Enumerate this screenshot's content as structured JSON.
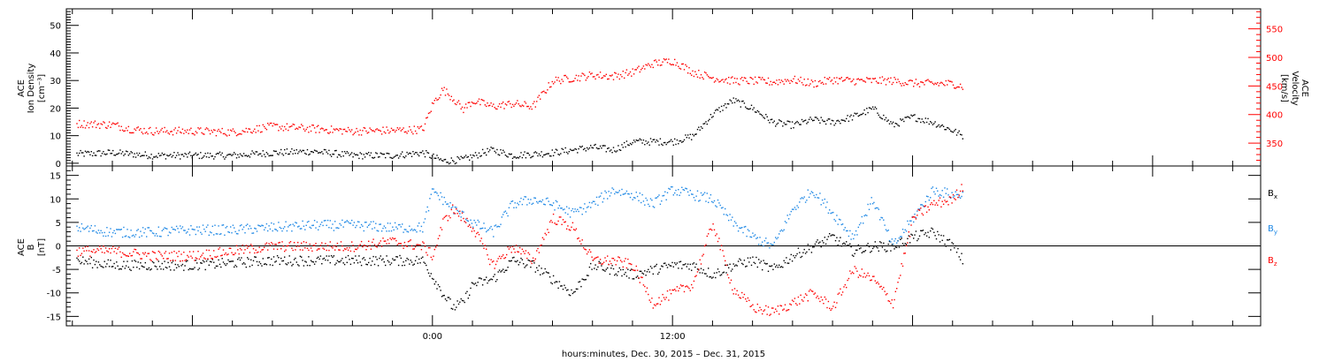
{
  "chart_data": [
    {
      "type": "scatter",
      "panel": "top",
      "left_axis": {
        "label_lines": [
          "ACE",
          "Ion Density",
          "[cm⁻³]"
        ],
        "ticks": [
          0,
          10,
          20,
          30,
          40,
          50
        ],
        "range": [
          -1,
          56
        ],
        "color": "#000000"
      },
      "right_axis": {
        "label_lines": [
          "ACE",
          "Velocity",
          "[km/s]"
        ],
        "ticks": [
          350,
          400,
          450,
          500,
          550
        ],
        "range": [
          310,
          585
        ],
        "color": "#ff0000"
      },
      "series": [
        {
          "axis": "left",
          "color": "#000000",
          "x": [
            -17.8,
            -16,
            -14,
            -12,
            -10,
            -8,
            -6,
            -4,
            -2,
            -0.5,
            0.5,
            1.5,
            2.5,
            3,
            4,
            5,
            6,
            7,
            8,
            9,
            10,
            11,
            12,
            13,
            14,
            15,
            16,
            17,
            18,
            19,
            20,
            21,
            22,
            23,
            24,
            25,
            26,
            26.5
          ],
          "y": [
            3.5,
            4,
            3,
            3,
            3,
            4,
            4.5,
            3,
            3,
            4,
            1,
            1.5,
            4,
            5,
            3,
            3.5,
            4,
            5,
            6,
            5,
            8,
            8,
            8,
            10,
            18,
            23,
            20,
            15,
            14,
            16,
            15,
            17,
            20,
            14,
            17,
            15,
            12,
            10
          ]
        },
        {
          "axis": "right",
          "color": "#ff0000",
          "x": [
            -17.8,
            -16,
            -15,
            -14,
            -12,
            -10,
            -8,
            -6,
            -4,
            -2,
            -0.5,
            0,
            0.5,
            1,
            1.5,
            2,
            3,
            4,
            5,
            6,
            7,
            8,
            9,
            10,
            11,
            12,
            13,
            14,
            15,
            16,
            17,
            18,
            19,
            20,
            21,
            22,
            23,
            24,
            25,
            26,
            26.5
          ],
          "y": [
            385,
            383,
            375,
            372,
            372,
            370,
            380,
            376,
            372,
            373,
            375,
            420,
            445,
            430,
            410,
            425,
            415,
            420,
            415,
            460,
            465,
            470,
            468,
            475,
            490,
            495,
            475,
            465,
            460,
            460,
            458,
            462,
            455,
            462,
            460,
            460,
            460,
            456,
            455,
            455,
            450
          ]
        }
      ]
    },
    {
      "type": "scatter",
      "panel": "bottom",
      "left_axis": {
        "label_lines": [
          "ACE",
          "B",
          "[nT]"
        ],
        "ticks": [
          -15,
          -10,
          -5,
          0,
          5,
          10,
          15
        ],
        "range": [
          -17,
          17
        ],
        "color": "#000000"
      },
      "series": [
        {
          "name": "Bx",
          "color": "#000000",
          "x": [
            -17.8,
            -16,
            -14,
            -12,
            -10,
            -8,
            -6,
            -4,
            -2,
            -0.5,
            0.5,
            1,
            1.5,
            2,
            3,
            4,
            5,
            6,
            7,
            8,
            9,
            10,
            11,
            12,
            13,
            14,
            15,
            16,
            17,
            18,
            19,
            20,
            21,
            22,
            23,
            24,
            25,
            26,
            26.5
          ],
          "y": [
            -3,
            -4,
            -4,
            -4,
            -3.5,
            -3,
            -3,
            -3,
            -3,
            -3,
            -10,
            -13,
            -12,
            -8,
            -7,
            -3,
            -4,
            -7,
            -10,
            -4,
            -5,
            -6,
            -5,
            -4,
            -4,
            -6,
            -4,
            -3,
            -5,
            -2,
            0,
            2,
            -1,
            0,
            0,
            2,
            3,
            0,
            -3
          ]
        },
        {
          "name": "By",
          "color": "#1e88e5",
          "x": [
            -17.8,
            -16,
            -14,
            -12,
            -10,
            -8,
            -6,
            -4,
            -2,
            -0.5,
            0,
            0.5,
            1,
            2,
            3,
            4,
            5,
            6,
            7,
            8,
            9,
            10,
            11,
            12,
            13,
            14,
            15,
            16,
            17,
            18,
            19,
            20,
            21,
            22,
            23,
            24,
            25,
            26,
            26.5
          ],
          "y": [
            4,
            3,
            3,
            3.5,
            3.5,
            4,
            4.5,
            4.5,
            4,
            4,
            12,
            10,
            8,
            5,
            3,
            9,
            10,
            9,
            7,
            9,
            12,
            11,
            9,
            12,
            11,
            10,
            5,
            2,
            0,
            8,
            12,
            7,
            2,
            10,
            0,
            6,
            12,
            11,
            11
          ]
        },
        {
          "name": "Bz",
          "color": "#ff0000",
          "x": [
            -17.8,
            -16,
            -14,
            -12,
            -10,
            -8,
            -6,
            -4,
            -2,
            -0.5,
            0,
            0.5,
            1,
            2,
            3,
            4,
            5,
            6,
            7,
            8,
            9,
            10,
            11,
            12,
            13,
            14,
            15,
            16,
            17,
            18,
            19,
            20,
            21,
            22,
            23,
            24,
            25,
            26,
            26.5
          ],
          "y": [
            -1,
            -1,
            -2,
            -2,
            -1,
            0,
            0,
            0,
            1,
            0,
            -2,
            5,
            8,
            4,
            -4,
            0,
            -3,
            6,
            4,
            -3,
            -3,
            -4,
            -12,
            -10,
            -8,
            5,
            -9,
            -13,
            -14,
            -12,
            -10,
            -13,
            -5,
            -7,
            -12,
            6,
            9,
            10,
            13
          ]
        }
      ],
      "legend": [
        {
          "name": "Bx",
          "main": "B",
          "sub": "x",
          "color": "#000000"
        },
        {
          "name": "By",
          "main": "B",
          "sub": "y",
          "color": "#1e88e5"
        },
        {
          "name": "Bz",
          "main": "B",
          "sub": "z",
          "color": "#ff0000"
        }
      ]
    }
  ],
  "x_axis": {
    "ticks": [
      0,
      12
    ],
    "tick_labels": [
      "0:00",
      "12:00"
    ],
    "range_hours": [
      -18.3,
      41.4
    ],
    "minor_tick_step_hours": 2,
    "label": "hours:minutes, Dec. 30, 2015 – Dec. 31, 2015"
  },
  "colors": {
    "density": "#000000",
    "velocity": "#ff0000",
    "bx": "#000000",
    "by": "#1e88e5",
    "bz": "#ff0000"
  }
}
